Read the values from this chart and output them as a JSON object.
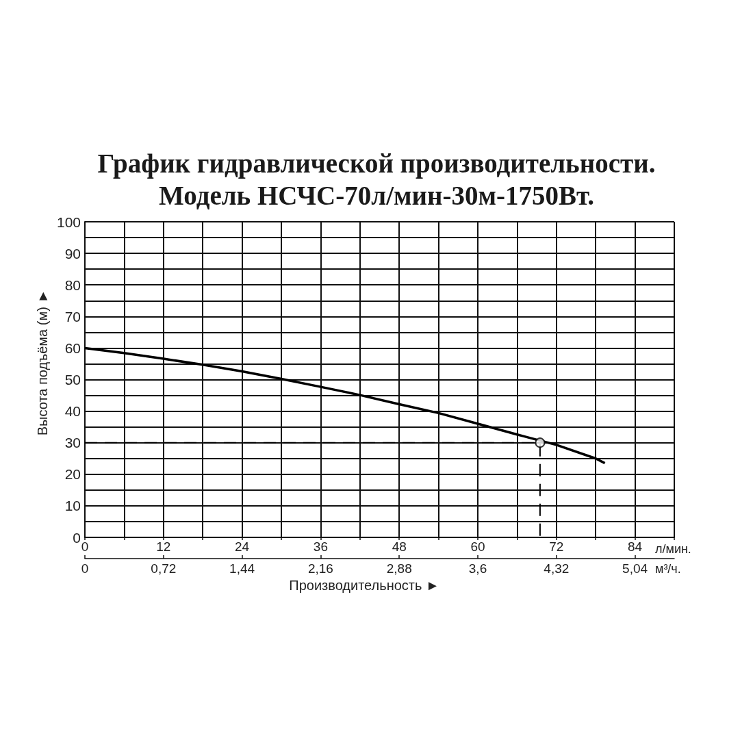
{
  "chart_data": {
    "type": "line",
    "title": "График гидравлической производительности.",
    "subtitle": "Модель НСЧС-70л/мин-30м-1750Вт.",
    "xlabel": "л/мин.",
    "x2label": "м³/ч.",
    "ylabel": "Высота подъёма (м) ►",
    "annotations": [
      "Производительность ►"
    ],
    "xlim": [
      0,
      90
    ],
    "xticks": [
      0,
      {
        "value": 6,
        "label": null
      },
      12,
      {
        "value": 18,
        "label": null
      },
      24,
      {
        "value": 30,
        "label": null
      },
      36,
      {
        "value": 42,
        "label": null
      },
      48,
      {
        "value": 54,
        "label": null
      },
      60,
      {
        "value": 66,
        "label": null
      },
      72,
      {
        "value": 78,
        "label": null
      },
      84,
      {
        "value": 90,
        "label": null
      }
    ],
    "x2lim": [
      0,
      5.4
    ],
    "x2ticks": [
      0,
      {
        "value": 0.72,
        "label": "0,72"
      },
      {
        "value": 1.44,
        "label": "1,44"
      },
      {
        "value": 2.16,
        "label": "2,16"
      },
      {
        "value": 2.88,
        "label": "2,88"
      },
      {
        "value": 3.6,
        "label": "3,6"
      },
      {
        "value": 4.32,
        "label": "4,32"
      },
      {
        "value": 5.04,
        "label": "5,04"
      }
    ],
    "ylim": [
      0,
      100
    ],
    "yticks": [
      0,
      {
        "value": 5,
        "label": null
      },
      10,
      {
        "value": 15,
        "label": null
      },
      20,
      {
        "value": 25,
        "label": null
      },
      30,
      {
        "value": 35,
        "label": null
      },
      40,
      {
        "value": 45,
        "label": null
      },
      50,
      {
        "value": 55,
        "label": null
      },
      60,
      {
        "value": 65,
        "label": null
      },
      70,
      {
        "value": 75,
        "label": null
      },
      80,
      {
        "value": 85,
        "label": null
      },
      90,
      {
        "value": 95,
        "label": null
      },
      100
    ],
    "grid": true,
    "series": [
      {
        "color": "#000000",
        "x": [
          0,
          6,
          12,
          18,
          24,
          30,
          36,
          42,
          48,
          54,
          60,
          66,
          72,
          78,
          79.4
        ],
        "values": [
          60,
          58.4,
          56.6,
          54.7,
          52.6,
          50.2,
          47.7,
          45.1,
          42.2,
          39.4,
          36,
          32.6,
          29.3,
          25,
          23.5
        ]
      },
      {
        "color": "#000000",
        "x": [
          0,
          69.5,
          69.5
        ],
        "values": [
          30,
          30,
          0
        ],
        "line_style": "dashed"
      },
      {
        "type": "scatter",
        "color": "#000000",
        "x": [
          69.5
        ],
        "values": [
          30
        ],
        "marker": "circle"
      }
    ]
  }
}
